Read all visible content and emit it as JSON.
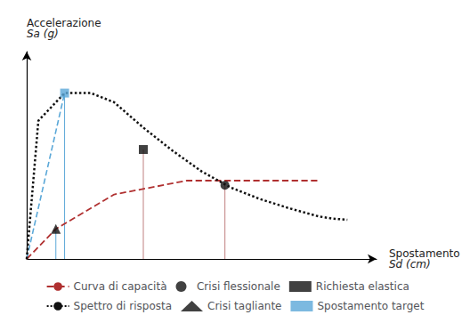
{
  "chart_data": {
    "type": "line",
    "ylabel": [
      "Accelerazione",
      "Sa (g)"
    ],
    "xlabel": [
      "Spostamento",
      "Sd (cm)"
    ],
    "xlim": [
      0,
      1.2
    ],
    "ylim": [
      0,
      0.9
    ],
    "tick_labels": false,
    "grid": false,
    "legend": "bottom",
    "series": [
      {
        "name": "Curva di capacità",
        "type": "line",
        "color": "#b03030",
        "line_style": "dashed",
        "x": [
          0,
          0.1,
          0.3,
          0.55,
          0.7,
          0.85,
          1.0
        ],
        "values": [
          0,
          0.13,
          0.28,
          0.34,
          0.34,
          0.34,
          0.34
        ]
      },
      {
        "name": "Crisi flessionale",
        "type": "scatter",
        "color": "#111111",
        "marker": "circle",
        "x": [
          0.68
        ],
        "values": [
          0.32
        ]
      },
      {
        "name": "Richiesta elastica",
        "type": "scatter",
        "color": "#111111",
        "marker": "square",
        "x": [
          0.4
        ],
        "values": [
          0.475
        ]
      },
      {
        "name": "Spettro di risposta",
        "type": "line",
        "color": "#111111",
        "line_style": "dotted",
        "x": [
          0,
          0.04,
          0.13,
          0.22,
          0.3,
          0.4,
          0.5,
          0.6,
          0.7,
          0.8,
          0.9,
          1.0,
          1.05,
          1.1
        ],
        "values": [
          0,
          0.6,
          0.72,
          0.72,
          0.68,
          0.57,
          0.47,
          0.38,
          0.31,
          0.26,
          0.22,
          0.185,
          0.175,
          0.17
        ]
      },
      {
        "name": "Crisi tagliante",
        "type": "scatter",
        "color": "#111111",
        "marker": "triangle",
        "x": [
          0.1
        ],
        "values": [
          0.13
        ]
      },
      {
        "name": "Spostamento target",
        "type": "scatter",
        "color": "#5ba8d8",
        "marker": "square",
        "x": [
          0.13
        ],
        "values": [
          0.72
        ]
      },
      {
        "type": "line",
        "color": "#5ba8d8",
        "line_style": "dashed",
        "x": [
          0,
          0.13
        ],
        "values": [
          0,
          0.72
        ]
      },
      {
        "type": "line",
        "color": "#5ba8d8",
        "line_style": "solid",
        "x": [
          0.13,
          0.13
        ],
        "values": [
          0,
          0.72
        ]
      },
      {
        "type": "line",
        "color": "#5ba8d8",
        "line_style": "solid",
        "x": [
          0.1,
          0.1
        ],
        "values": [
          0,
          0.13
        ]
      },
      {
        "type": "line",
        "color": "#c08080",
        "line_style": "solid",
        "x": [
          0.4,
          0.4
        ],
        "values": [
          0,
          0.475
        ]
      },
      {
        "type": "line",
        "color": "#c08080",
        "line_style": "solid",
        "x": [
          0.68,
          0.68
        ],
        "values": [
          0,
          0.32
        ]
      }
    ]
  }
}
